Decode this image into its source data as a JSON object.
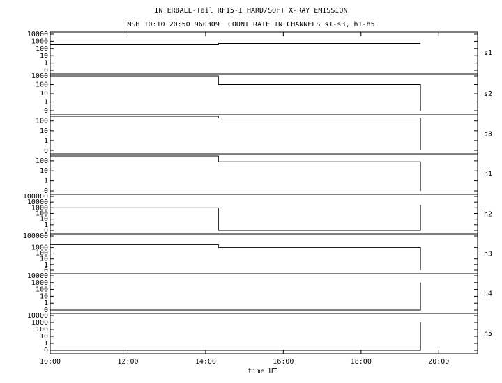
{
  "header": {
    "title": "INTERBALL-Tail RF15-I HARD/SOFT X-RAY EMISSION",
    "subtitle": "MSH 10:10 20:50 960309  COUNT RATE IN CHANNELS s1-s3, h1-h5"
  },
  "chart_data": [
    {
      "type": "line",
      "label": "s1",
      "yscale": "symlog",
      "ylim": [
        0,
        10000
      ],
      "yticks": [
        10000,
        1000,
        100,
        10,
        1,
        0
      ],
      "xlim": [
        10,
        21
      ],
      "x": [
        10,
        14.33,
        14.33,
        19.53
      ],
      "values": [
        400,
        400,
        500,
        500
      ]
    },
    {
      "type": "line",
      "label": "s2",
      "yscale": "symlog",
      "ylim": [
        0,
        1000
      ],
      "yticks": [
        1000,
        100,
        10,
        1,
        0
      ],
      "xlim": [
        10,
        21
      ],
      "x": [
        10,
        14.33,
        14.33,
        19.53,
        19.53
      ],
      "values": [
        1000,
        1000,
        100,
        100,
        0
      ]
    },
    {
      "type": "line",
      "label": "s3",
      "yscale": "symlog",
      "ylim": [
        0,
        300
      ],
      "yticks": [
        100,
        10,
        1,
        0
      ],
      "xlim": [
        10,
        21
      ],
      "x": [
        10,
        14.33,
        14.33,
        19.53,
        19.53
      ],
      "values": [
        300,
        300,
        200,
        200,
        0
      ]
    },
    {
      "type": "line",
      "label": "h1",
      "yscale": "symlog",
      "ylim": [
        0,
        300
      ],
      "yticks": [
        100,
        10,
        1,
        0
      ],
      "xlim": [
        10,
        21
      ],
      "x": [
        10,
        14.33,
        14.33,
        19.53,
        19.53
      ],
      "values": [
        300,
        300,
        80,
        80,
        0
      ]
    },
    {
      "type": "line",
      "label": "h2",
      "yscale": "symlog",
      "ylim": [
        0,
        100000
      ],
      "yticks": [
        100000,
        10000,
        1000,
        100,
        10,
        1,
        0
      ],
      "xlim": [
        10,
        21
      ],
      "x": [
        10,
        14.33,
        14.33,
        19.53,
        19.53
      ],
      "values": [
        1000,
        1000,
        0,
        0,
        3000
      ]
    },
    {
      "type": "line",
      "label": "h3",
      "yscale": "symlog",
      "ylim": [
        0,
        100000
      ],
      "yticks": [
        100000,
        1000,
        100,
        10,
        1,
        0
      ],
      "xlim": [
        10,
        21
      ],
      "x": [
        10,
        14.33,
        14.33,
        19.53,
        19.53
      ],
      "values": [
        3000,
        3000,
        1000,
        1000,
        0
      ]
    },
    {
      "type": "line",
      "label": "h4",
      "yscale": "symlog",
      "ylim": [
        0,
        10000
      ],
      "yticks": [
        10000,
        1000,
        100,
        10,
        1,
        0
      ],
      "xlim": [
        10,
        21
      ],
      "x": [
        10,
        19.53,
        19.53
      ],
      "values": [
        0,
        0,
        1000
      ]
    },
    {
      "type": "line",
      "label": "h5",
      "yscale": "symlog",
      "ylim": [
        0,
        10000
      ],
      "yticks": [
        10000,
        1000,
        100,
        10,
        1,
        0
      ],
      "xlim": [
        10,
        21
      ],
      "x": [
        10,
        19.53,
        19.53
      ],
      "values": [
        0,
        0,
        1000
      ],
      "xlabel": "time UT",
      "xticks": [
        {
          "value": 10,
          "label": "10:00"
        },
        {
          "value": 12,
          "label": "12:00"
        },
        {
          "value": 14,
          "label": "14:00"
        },
        {
          "value": 16,
          "label": "16:00"
        },
        {
          "value": 18,
          "label": "18:00"
        },
        {
          "value": 20,
          "label": "20:00"
        }
      ]
    }
  ]
}
